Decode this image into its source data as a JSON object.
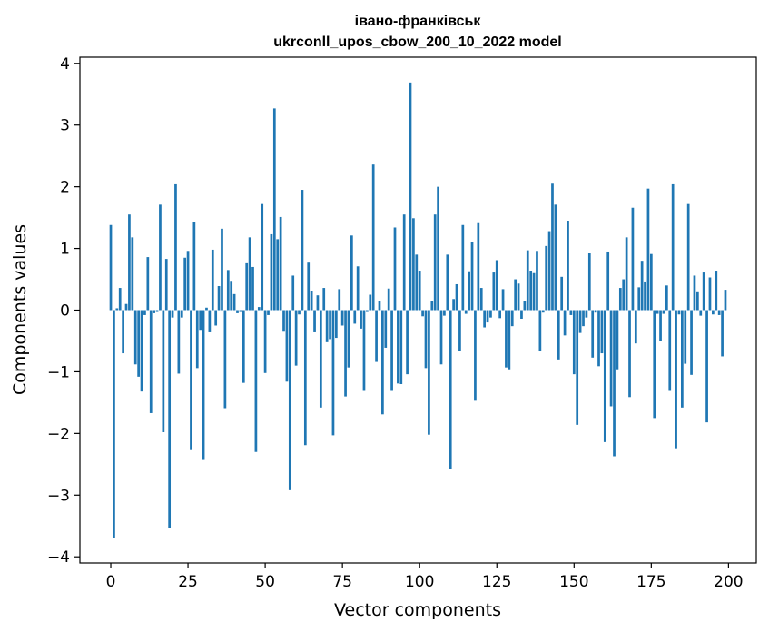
{
  "chart_data": {
    "type": "bar",
    "title": "івано-франківськ",
    "subtitle": "ukrconll_upos_cbow_200_10_2022 model",
    "xlabel": "Vector components",
    "ylabel": "Components values",
    "xlim": [
      -10,
      209
    ],
    "ylim": [
      -4.1,
      4.1
    ],
    "xticks": [
      0,
      25,
      50,
      75,
      100,
      125,
      150,
      175,
      200
    ],
    "yticks": [
      -4,
      -3,
      -2,
      -1,
      0,
      1,
      2,
      3,
      4
    ],
    "xtick_labels": [
      "0",
      "25",
      "50",
      "75",
      "100",
      "125",
      "150",
      "175",
      "200"
    ],
    "ytick_labels": [
      "−4",
      "−3",
      "−2",
      "−1",
      "0",
      "1",
      "2",
      "3",
      "4"
    ],
    "bar_color": "#1f77b4",
    "grid": false,
    "x": [
      0,
      1,
      2,
      3,
      4,
      5,
      6,
      7,
      8,
      9,
      10,
      11,
      12,
      13,
      14,
      15,
      16,
      17,
      18,
      19,
      20,
      21,
      22,
      23,
      24,
      25,
      26,
      27,
      28,
      29,
      30,
      31,
      32,
      33,
      34,
      35,
      36,
      37,
      38,
      39,
      40,
      41,
      42,
      43,
      44,
      45,
      46,
      47,
      48,
      49,
      50,
      51,
      52,
      53,
      54,
      55,
      56,
      57,
      58,
      59,
      60,
      61,
      62,
      63,
      64,
      65,
      66,
      67,
      68,
      69,
      70,
      71,
      72,
      73,
      74,
      75,
      76,
      77,
      78,
      79,
      80,
      81,
      82,
      83,
      84,
      85,
      86,
      87,
      88,
      89,
      90,
      91,
      92,
      93,
      94,
      95,
      96,
      97,
      98,
      99,
      100,
      101,
      102,
      103,
      104,
      105,
      106,
      107,
      108,
      109,
      110,
      111,
      112,
      113,
      114,
      115,
      116,
      117,
      118,
      119,
      120,
      121,
      122,
      123,
      124,
      125,
      126,
      127,
      128,
      129,
      130,
      131,
      132,
      133,
      134,
      135,
      136,
      137,
      138,
      139,
      140,
      141,
      142,
      143,
      144,
      145,
      146,
      147,
      148,
      149,
      150,
      151,
      152,
      153,
      154,
      155,
      156,
      157,
      158,
      159,
      160,
      161,
      162,
      163,
      164,
      165,
      166,
      167,
      168,
      169,
      170,
      171,
      172,
      173,
      174,
      175,
      176,
      177,
      178,
      179,
      180,
      181,
      182,
      183,
      184,
      185,
      186,
      187,
      188,
      189,
      190,
      191,
      192,
      193,
      194,
      195,
      196,
      197,
      198,
      199
    ],
    "values": [
      1.38,
      -3.7,
      0.03,
      0.36,
      -0.7,
      0.1,
      1.55,
      1.18,
      -0.88,
      -1.08,
      -1.32,
      -0.08,
      0.86,
      -1.67,
      -0.05,
      -0.03,
      1.71,
      -1.98,
      0.83,
      -3.53,
      -0.12,
      2.04,
      -1.03,
      -0.12,
      0.85,
      0.96,
      -2.27,
      1.43,
      -0.94,
      -0.32,
      -2.43,
      0.04,
      -0.36,
      0.98,
      -0.25,
      0.39,
      1.32,
      -1.59,
      0.65,
      0.46,
      0.26,
      -0.05,
      -0.03,
      -1.18,
      0.76,
      1.18,
      0.7,
      -2.3,
      0.05,
      1.72,
      -1.02,
      -0.08,
      1.23,
      3.27,
      1.15,
      1.51,
      -0.35,
      -1.16,
      -2.92,
      0.56,
      -0.9,
      -0.07,
      1.95,
      -2.19,
      0.77,
      0.31,
      -0.36,
      0.24,
      -1.58,
      0.36,
      -0.52,
      -0.47,
      -2.03,
      -0.45,
      0.34,
      -0.25,
      -1.4,
      -0.93,
      1.21,
      -0.22,
      0.71,
      -0.3,
      -1.31,
      -0.03,
      0.25,
      2.36,
      -0.84,
      0.14,
      -1.69,
      -0.61,
      0.35,
      -1.31,
      1.34,
      -1.19,
      -1.2,
      1.55,
      -1.04,
      3.69,
      1.49,
      0.9,
      0.64,
      -0.1,
      -0.94,
      -2.02,
      0.14,
      1.55,
      2.0,
      -0.88,
      -0.09,
      0.9,
      -2.57,
      0.18,
      0.42,
      -0.66,
      1.38,
      -0.06,
      0.63,
      1.1,
      -1.47,
      1.41,
      0.36,
      -0.28,
      -0.2,
      -0.12,
      0.61,
      0.81,
      -0.13,
      0.34,
      -0.93,
      -0.96,
      -0.26,
      0.5,
      0.43,
      -0.14,
      0.14,
      0.97,
      0.64,
      0.6,
      0.96,
      -0.67,
      -0.04,
      1.04,
      1.28,
      2.05,
      1.71,
      -0.8,
      0.54,
      -0.41,
      1.45,
      -0.08,
      -1.04,
      -1.86,
      -0.37,
      -0.26,
      -0.12,
      0.92,
      -0.77,
      -0.04,
      -0.91,
      -0.7,
      -2.14,
      0.95,
      -1.56,
      -2.37,
      -0.96,
      0.36,
      0.5,
      1.18,
      -1.41,
      1.66,
      -0.54,
      0.37,
      0.8,
      0.45,
      1.97,
      0.91,
      -1.75,
      -0.06,
      -0.5,
      -0.06,
      0.4,
      -1.31,
      2.04,
      -2.24,
      -0.07,
      -1.58,
      -0.87,
      1.72,
      -1.05,
      0.56,
      0.29,
      -0.09,
      0.61,
      -1.82,
      0.53,
      -0.07,
      0.64,
      -0.08,
      -0.75,
      0.33
    ]
  }
}
